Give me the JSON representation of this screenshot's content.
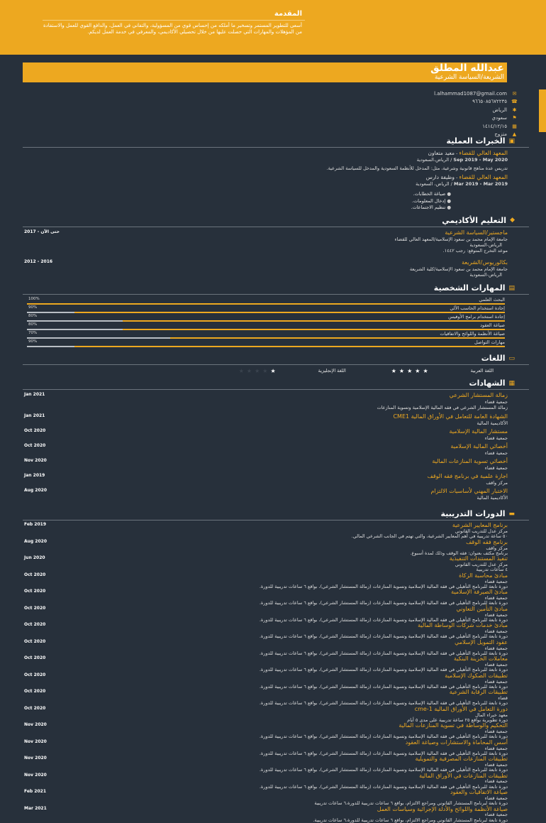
{
  "intro": {
    "title": "المقدمة",
    "text": "أسعى للتطوير المستمر وتسخير ما أملكه من إحساس قوي من المسؤولية، والتفاني في العمل، والدافع القوي للعمل والاستفادة من المؤهلات والمهارات التي حصلت عليها من خلال تحصيلي الأكاديمي، والمعرفي في خدمة العمل لديكم."
  },
  "header": {
    "name": "عبدالله المطلق",
    "role": "الشريعة/السياسة الشرعية"
  },
  "contact": [
    {
      "icon": "✉",
      "text": "l.alhammad1087@gmail.com"
    },
    {
      "icon": "☎",
      "text": "٩٦٦٥٠٨٥٦٧٢٢٣٥"
    },
    {
      "icon": "✱",
      "text": "الرياض"
    },
    {
      "icon": "⚑",
      "text": "سعودي"
    },
    {
      "icon": "▦",
      "text": "١٤١٤/١٢/١٥"
    },
    {
      "icon": "▲",
      "text": "متزوج"
    }
  ],
  "experience": {
    "title": "الخبرات العملية",
    "items": [
      {
        "org": "المعهد العالي للقضاء",
        "role": "معيد متعاون",
        "dates": "Sep 2019 - May 2020",
        "loc": "الرياض،السعودية",
        "desc": "تدريس عدة مناهج قانونية وشرعية، مثل: المدخل للأنظمة السعودية والمدخل للسياسة الشرعية."
      },
      {
        "org": "المعهد العالي للقضاء",
        "role": "وظيفة دارس",
        "dates": "Mar 2019 - Mar 2019",
        "loc": "الرياض، السعودية",
        "bullets": [
          "صياغة الخطابات.",
          "إدخال المعلومات.",
          "تنظيم الاجتماعات."
        ]
      }
    ]
  },
  "education": {
    "title": "التعليم الأكاديمي",
    "items": [
      {
        "degree": "ماجستير/السياسة الشرعية",
        "dates": "2017 - حتى الآن",
        "school": "جامعة الإمام محمد بن سعود الإسلامية/المعهد العالي للقضاء",
        "loc": "الرياض-السعودية",
        "note": "موعد التخرج المتوقع: رجب ١٤٤٢."
      },
      {
        "degree": "بكالوريوس/الشريعة",
        "dates": "2012 - 2016",
        "school": "جامعة الإمام محمد بن سعود الإسلامية/كلية الشريعة",
        "loc": "الرياض-السعودية"
      }
    ]
  },
  "skills": {
    "title": "المهارات الشخصية",
    "items": [
      {
        "name": "البحث العلمي",
        "pct": "100%",
        "value": 100
      },
      {
        "name": "إجادة استخدام الحاسب الآلي",
        "pct": "90%",
        "value": 90
      },
      {
        "name": "إجادة استخدام برامج الأوفيس",
        "pct": "80%",
        "value": 80
      },
      {
        "name": "صياغة العقود",
        "pct": "80%",
        "value": 80
      },
      {
        "name": "صياغة الأنظمة واللوائح والاتفاقيات",
        "pct": "70%",
        "value": 70
      },
      {
        "name": "مهارات التواصل",
        "pct": "90%",
        "value": 90
      }
    ]
  },
  "languages": {
    "title": "اللغات",
    "items": [
      {
        "name": "اللغة العربية",
        "stars": 5
      },
      {
        "name": "اللغة الإنجليزية",
        "stars": 1
      }
    ]
  },
  "certificates": {
    "title": "الشهادات",
    "items": [
      {
        "title": "زمالة المستشار الشرعي",
        "org": "جمعية قضاء",
        "desc": "زمالة المستشار الشرعي في فقه المالية الإسلامية وتسوية المنازعات",
        "date": "Jan 2021"
      },
      {
        "title": "الشهادة العامة للتعامل في الأوراق المالية CME1",
        "org": "الأكاديمية المالية",
        "date": "Jan 2021"
      },
      {
        "title": "مستشار المالية الإسلامية",
        "org": "جمعية قضاء",
        "date": "Oct 2020"
      },
      {
        "title": "أخصائي المالية الإسلامية",
        "org": "جمعية قضاء",
        "date": "Oct 2020"
      },
      {
        "title": "أخصائي تسوية المنازعات المالية",
        "org": "جمعية قضاء",
        "date": "Nov 2020"
      },
      {
        "title": "اجازة علمية في برنامج فقه الوقف",
        "org": "مركز واقف",
        "date": "Jan 2019"
      },
      {
        "title": "الاختبار المهني لأساسيات الالتزام",
        "org": "الأكاديمية المالية",
        "date": "Aug 2020"
      }
    ]
  },
  "courses": {
    "title": "الدورات التدريبية",
    "items": [
      {
        "title": "برنامج المعايير الشرعية",
        "org": "مركز عدل للتدريب القانوني",
        "desc": "٥٠ ساعة تدريبية في أهم المعايير الشرعية، والتي تهتم في الجانب الشرعي المالي.",
        "date": "Feb 2019"
      },
      {
        "title": "برنامج فقه الوقف",
        "org": "مركز واقف",
        "desc": "برنامج مكثف بعنوان: فقه الوقف وذلك لمدة أسبوع.",
        "date": "Aug 2020"
      },
      {
        "title": "تنفيذ المستندات التنفيذية",
        "org": "مركز عدل للتدريب القانوني",
        "desc": "٤ ساعات تدريبية",
        "date": "Jun 2020"
      },
      {
        "title": "مبادئ محاسبة الزكاة",
        "org": "جمعية قضاء",
        "desc": "دورة تابعة للبرنامج التأهيلي في فقه المالية الإسلامية وتسوية المنازعات (زمالة المستشار الشرعي)، بواقع ٦ ساعات تدريبية للدورة.",
        "date": "Oct 2020"
      },
      {
        "title": "مبادئ الصيرفة الإسلامية",
        "org": "جمعية قضاء",
        "desc": "دورة تابعة للبرنامج التأهيلي في فقه المالية الإسلامية وتسوية المنازعات (زمالة المستشار الشرعي)، بواقع ٦ ساعات تدريبية للدورة.",
        "date": "Oct 2020"
      },
      {
        "title": "مبادئ التأمين التعاوني",
        "org": "جمعية قضاء",
        "desc": "دورة تابعة للبرنامج التأهيلي في فقه المالية الإسلامية وتسوية المنازعات (زمالة المستشار الشرعي)، بواقع ٦ ساعات تدريبية للدورة.",
        "date": "Oct 2020"
      },
      {
        "title": "مبادئ خدمات شركات الوساطة المالية",
        "org": "جمعية قضاء",
        "desc": "دورة تابعة للبرنامج التأهيلي في فقه المالية الإسلامية وتسوية المنازعات (زمالة المستشار الشرعي)، بواقع ٦ ساعات تدريبية للدورة.",
        "date": "Oct 2020"
      },
      {
        "title": "عقود التمويل الإسلامي",
        "org": "جمعية قضاء",
        "desc": "دورة تابعة للبرنامج التأهيلي في فقه المالية الإسلامية وتسوية المنازعات (زمالة المستشار الشرعي)، بواقع ٦ ساعات تدريبية للدورة.",
        "date": "Oct 2020"
      },
      {
        "title": "معاملات الخزينة البنكية",
        "org": "جمعية قضاء",
        "desc": "دورة تابعة للبرنامج التأهيلي في فقه المالية الإسلامية وتسوية المنازعات (زمالة المستشار الشرعي)، بواقع ٦ ساعات تدريبية للدورة.",
        "date": "Oct 2020"
      },
      {
        "title": "تطبيقات الصكوك الإسلامية",
        "org": "جمعية قضاء",
        "desc": "دورة تابعة للبرنامج التأهيلي في فقه المالية الإسلامية وتسوية المنازعات (زمالة المستشار الشرعي)، بواقع ٦ ساعات تدريبية للدورة.",
        "date": "Oct 2020"
      },
      {
        "title": "تطبيقات الرقابة الشرعية",
        "org": "قضاء",
        "desc": "دورة تابعة للبرنامج التأهيلي في فقه المالية الإسلامية وتسوية المنازعات (زمالة المستشار الشرعي)، بواقع ٦ ساعات تدريبية للدورة.",
        "date": "Oct 2020"
      },
      {
        "title": "دورة التعامل في الأوراق المالية cme-1",
        "org": "معهد خبراء المال",
        "desc": "دورة تطويرية بواقع ٢٥ ساعة تدريبية على مدى ٥ أيام",
        "date": "Oct 2020"
      },
      {
        "title": "التحكيم والوساطة في تسوية المنازعات المالية",
        "org": "جمعية قضاء",
        "desc": "دورة تابعة للبرنامج التأهيلي في فقه المالية الإسلامية وتسوية المنازعات (زمالة المستشار الشرعي)، بواقع ٦ ساعات تدريبية للدورة.",
        "date": "Nov 2020"
      },
      {
        "title": "أسس المحاماة والاستشارات وصياغة العقود",
        "org": "جمعية قضاء",
        "desc": "دورة تابعة للبرنامج التأهيلي في فقه المالية الإسلامية وتسوية المنازعات (زمالة المستشار الشرعي)، بواقع ٦ ساعات تدريبية للدورة.",
        "date": "Nov 2020"
      },
      {
        "title": "تطبيقات المنازعات المصرفية والتمويلية",
        "org": "جمعية قضاء",
        "desc": "دورة تابعة للبرنامج التأهيلي في فقه المالية الإسلامية وتسوية المنازعات (زمالة المستشار الشرعي)، بواقع ٦ ساعات تدريبية للدورة.",
        "date": "Nov 2020"
      },
      {
        "title": "تطبيقات المنازعات في الأوراق المالية",
        "org": "جمعية قضاء",
        "desc": "دورة تابعة للبرنامج التأهيلي في فقه المالية الإسلامية وتسوية المنازعات (زمالة المستشار الشرعي)، بواقع ٦ ساعات تدريبية للدورة.",
        "date": "Nov 2020"
      },
      {
        "title": "صياغة الاتفاقيات والعقود",
        "org": "جمعية قضاء",
        "desc": "دورة تابعة لبرنامج المستشار القانوني ومراجع الالتزام، بواقع ٦ ساعات تدريبية للدورة،٦ ساعات تدريبية",
        "date": "Feb 2021"
      },
      {
        "title": "صياغة الأنظمة واللوائح والأدلة الإجرائية وسياسات العمل",
        "org": "جمعية قضاء",
        "desc": "دورة تابعة لبرنامج المستشار القانوني ومراجع الالتزام، بواقع ٦ ساعات تدريبية للدورة،٦ ساعات تدريبية.",
        "date": "Mar 2021"
      }
    ]
  },
  "colors": {
    "accent": "#eda820",
    "background": "#27303b"
  }
}
